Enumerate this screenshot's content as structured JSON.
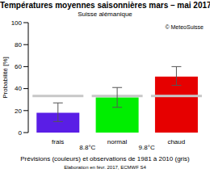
{
  "chart_data": {
    "type": "bar",
    "title": "Températures moyennes saisonnières mars – mai 2017",
    "subtitle": "Suisse alémanique",
    "annotation": "© MeteoSuisse",
    "ylabel": "Probabilité [%]",
    "caption": "Prévisions (couleurs) et observations de 1981 à 2010 (gris)",
    "footnote": "Elaboration en févr. 2017, ECMWF S4",
    "categories": [
      "frais",
      "normal",
      "chaud"
    ],
    "values": [
      18,
      32,
      51
    ],
    "colors": [
      "#5a1ee6",
      "#00ee00",
      "#e60000"
    ],
    "error_low": [
      10,
      23,
      43
    ],
    "error_high": [
      27,
      41,
      60
    ],
    "observed": [
      33.3,
      33.3,
      33.3
    ],
    "observed_color": "#c8c8c8",
    "thresholds": [
      {
        "value": 8.8,
        "label": "8.8°C"
      },
      {
        "value": 9.8,
        "label": "9.8°C"
      }
    ],
    "ylim": [
      0,
      100
    ],
    "yticks": [
      0,
      20,
      40,
      60,
      80,
      100
    ],
    "grid": false
  }
}
